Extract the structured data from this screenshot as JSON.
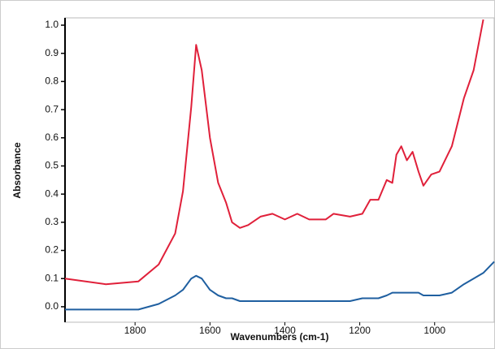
{
  "chart_data": {
    "type": "line",
    "x_label": "Wavenumbers (cm-1)",
    "y_label": "Absorbance",
    "x": [
      1987,
      1878,
      1791,
      1737,
      1693,
      1672,
      1650,
      1637,
      1622,
      1600,
      1578,
      1557,
      1541,
      1520,
      1498,
      1465,
      1433,
      1400,
      1367,
      1335,
      1291,
      1270,
      1226,
      1193,
      1172,
      1150,
      1128,
      1113,
      1102,
      1089,
      1074,
      1059,
      1043,
      1030,
      1009,
      987,
      954,
      922,
      896,
      870,
      841
    ],
    "series": [
      {
        "color": "#e0203a",
        "values": [
          0.1,
          0.08,
          0.09,
          0.15,
          0.26,
          0.41,
          0.71,
          0.93,
          0.84,
          0.6,
          0.44,
          0.37,
          0.3,
          0.28,
          0.29,
          0.32,
          0.33,
          0.31,
          0.33,
          0.31,
          0.31,
          0.33,
          0.32,
          0.33,
          0.38,
          0.38,
          0.45,
          0.44,
          0.54,
          0.57,
          0.52,
          0.55,
          0.48,
          0.43,
          0.47,
          0.48,
          0.57,
          0.74,
          0.84,
          1.02,
          null
        ]
      },
      {
        "color": "#1f5fa0",
        "values": [
          -0.01,
          -0.01,
          -0.01,
          0.01,
          0.04,
          0.06,
          0.1,
          0.11,
          0.1,
          0.06,
          0.04,
          0.03,
          0.03,
          0.02,
          0.02,
          0.02,
          0.02,
          0.02,
          0.02,
          0.02,
          0.02,
          0.02,
          0.02,
          0.03,
          0.03,
          0.03,
          0.04,
          0.05,
          0.05,
          0.05,
          0.05,
          0.05,
          0.05,
          0.04,
          0.04,
          0.04,
          0.05,
          0.08,
          0.1,
          0.12,
          0.16
        ]
      }
    ],
    "xlim": [
      1987,
      841
    ],
    "ylim": [
      -0.055,
      1.026
    ],
    "xticks": [
      1800,
      1600,
      1400,
      1200,
      1000
    ],
    "yticks": [
      {
        "value": 0,
        "label": "0.0"
      },
      0.1,
      0.2,
      0.3,
      0.4,
      0.5,
      0.6,
      0.7,
      0.8,
      0.9,
      {
        "value": 1,
        "label": "1.0"
      }
    ]
  }
}
